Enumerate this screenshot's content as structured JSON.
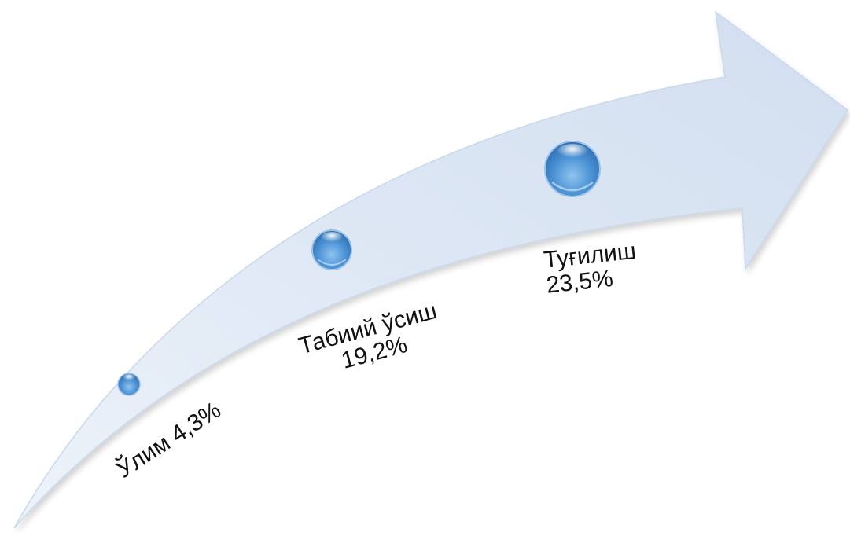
{
  "items": [
    {
      "label": "Ўлим 4,3%"
    },
    {
      "label": "Табиий ўсиш",
      "value": "19,2%"
    },
    {
      "label": "Туғилиш",
      "value": "23,5%"
    }
  ],
  "colors": {
    "arrow_fill": "#dbe6f4",
    "bubble_main": "#4e95d6",
    "bubble_dark": "#2f6fb2",
    "bubble_highlight": "#ffffff"
  }
}
